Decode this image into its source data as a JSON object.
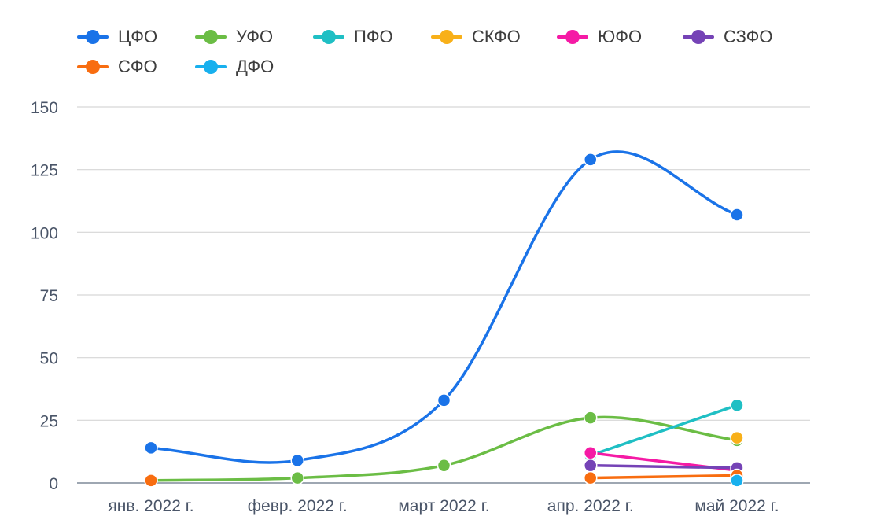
{
  "chart_data": {
    "type": "line",
    "title": "",
    "xlabel": "",
    "ylabel": "",
    "categories": [
      "янв. 2022 г.",
      "февр. 2022 г.",
      "март 2022 г.",
      "апр. 2022 г.",
      "май 2022 г."
    ],
    "ylim": [
      0,
      150
    ],
    "yticks": [
      0,
      25,
      50,
      75,
      100,
      125,
      150
    ],
    "grid": true,
    "legend_position": "top",
    "series": [
      {
        "name": "ЦФО",
        "color": "#1a73e8",
        "smooth": true,
        "values": [
          14,
          9,
          33,
          129,
          107
        ]
      },
      {
        "name": "УФО",
        "color": "#6bbd45",
        "smooth": true,
        "values": [
          1,
          2,
          7,
          26,
          17
        ]
      },
      {
        "name": "ПФО",
        "color": "#1fbfc4",
        "smooth": false,
        "values": [
          null,
          null,
          null,
          11,
          31
        ]
      },
      {
        "name": "СКФО",
        "color": "#f8b019",
        "smooth": false,
        "values": [
          null,
          null,
          null,
          null,
          18
        ]
      },
      {
        "name": "ЮФО",
        "color": "#f51aa5",
        "smooth": false,
        "values": [
          null,
          null,
          null,
          12,
          5
        ]
      },
      {
        "name": "СЗФО",
        "color": "#7543b6",
        "smooth": false,
        "values": [
          null,
          null,
          null,
          7,
          6
        ]
      },
      {
        "name": "СФО",
        "color": "#f86d10",
        "smooth": false,
        "values": [
          1,
          null,
          null,
          2,
          3
        ]
      },
      {
        "name": "ДФО",
        "color": "#18b0ee",
        "smooth": false,
        "values": [
          null,
          null,
          null,
          null,
          1
        ]
      }
    ]
  }
}
